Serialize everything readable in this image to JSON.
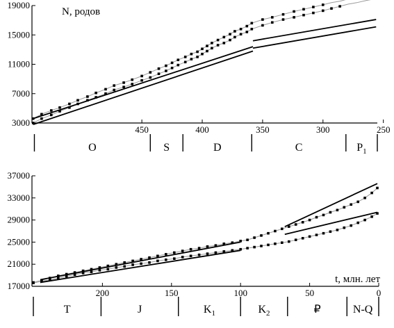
{
  "chart_data": [
    {
      "type": "line",
      "ylabel": "N, родов",
      "xlim": [
        541,
        255
      ],
      "ylim": [
        3000,
        19000
      ],
      "yticks": [
        3000,
        7000,
        11000,
        15000,
        19000
      ],
      "xticks": [
        450,
        400,
        350,
        300,
        250
      ],
      "grid": false,
      "periods": [
        {
          "label": "O",
          "sub": ""
        },
        {
          "label": "S",
          "sub": ""
        },
        {
          "label": "D",
          "sub": ""
        },
        {
          "label": "C",
          "sub": ""
        },
        {
          "label": "P",
          "sub": "1"
        }
      ],
      "period_bounds": [
        539,
        443,
        416,
        359,
        281
      ],
      "series": [
        {
          "x": [
            540,
            533,
            525,
            518,
            510,
            503,
            495,
            488,
            480,
            473,
            465,
            458,
            450,
            443,
            436,
            430,
            425,
            420,
            414,
            409,
            404,
            400,
            396,
            392,
            387,
            382,
            377,
            373,
            368,
            363,
            359,
            350,
            342,
            333,
            324,
            316,
            308,
            300,
            293,
            286,
            279,
            272,
            264,
            257
          ],
          "values": [
            3600,
            4200,
            4700,
            5100,
            5600,
            6100,
            6600,
            7100,
            7600,
            8100,
            8500,
            8900,
            9400,
            9900,
            10400,
            10800,
            11200,
            11600,
            12000,
            12400,
            12700,
            13100,
            13500,
            13900,
            14300,
            14700,
            15100,
            15500,
            15800,
            16200,
            16600,
            17100,
            17400,
            17800,
            18200,
            18500,
            18800,
            19100,
            19400,
            19600,
            19900,
            20100,
            20300,
            20600
          ]
        },
        {
          "x": [
            540,
            533,
            525,
            518,
            510,
            503,
            495,
            488,
            480,
            473,
            465,
            458,
            450,
            443,
            436,
            430,
            425,
            420,
            414,
            409,
            404,
            400,
            396,
            392,
            387,
            382,
            377,
            373,
            368,
            363,
            359,
            350,
            342,
            333,
            324,
            316,
            308,
            300,
            293,
            286,
            279,
            272,
            264,
            257
          ],
          "values": [
            3000,
            3600,
            4100,
            4600,
            5100,
            5600,
            6100,
            6500,
            7000,
            7500,
            7900,
            8300,
            8800,
            9200,
            9700,
            10100,
            10500,
            10900,
            11300,
            11700,
            12000,
            12400,
            12800,
            13200,
            13600,
            13900,
            14300,
            14700,
            15100,
            15400,
            15800,
            16300,
            16700,
            17100,
            17400,
            17700,
            18000,
            18300,
            18600,
            18900,
            19200,
            19400,
            19700,
            19900
          ]
        }
      ],
      "fits": [
        {
          "from": [
            540,
            3600
          ],
          "to": [
            358,
            13400
          ]
        },
        {
          "from": [
            358,
            14200
          ],
          "to": [
            256,
            17100
          ]
        },
        {
          "from": [
            540,
            2800
          ],
          "to": [
            358,
            12800
          ]
        },
        {
          "from": [
            358,
            13200
          ],
          "to": [
            256,
            16100
          ]
        }
      ]
    },
    {
      "type": "line",
      "xlabel": "t, млн. лет",
      "xlim": [
        251,
        0
      ],
      "ylim": [
        17000,
        37000
      ],
      "yticks": [
        17000,
        21000,
        25000,
        29000,
        33000,
        37000
      ],
      "xticks": [
        200,
        150,
        100,
        50,
        0
      ],
      "grid": false,
      "periods": [
        {
          "label": "T",
          "sub": ""
        },
        {
          "label": "J",
          "sub": ""
        },
        {
          "label": "K",
          "sub": "1"
        },
        {
          "label": "K",
          "sub": "2"
        },
        {
          "label": "₽",
          "sub": ""
        },
        {
          "label": "N-Q",
          "sub": ""
        }
      ],
      "period_bounds": [
        250,
        201,
        145,
        100,
        66,
        23
      ],
      "series": [
        {
          "x": [
            250,
            244,
            238,
            232,
            226,
            220,
            214,
            208,
            202,
            196,
            190,
            184,
            178,
            172,
            166,
            160,
            154,
            148,
            142,
            136,
            130,
            124,
            118,
            112,
            106,
            100,
            95,
            90,
            85,
            80,
            75,
            70,
            65,
            60,
            55,
            50,
            45,
            40,
            35,
            30,
            25,
            20,
            15,
            10,
            5,
            1
          ],
          "values": [
            17700,
            18100,
            18500,
            18900,
            19200,
            19500,
            19800,
            20100,
            20400,
            20700,
            21000,
            21300,
            21600,
            21900,
            22200,
            22500,
            22800,
            23100,
            23400,
            23700,
            23900,
            24200,
            24400,
            24700,
            24900,
            25200,
            25400,
            25800,
            26200,
            26600,
            27000,
            27400,
            27800,
            28200,
            28600,
            29000,
            29500,
            29900,
            30400,
            30800,
            31300,
            31800,
            32300,
            33000,
            33900,
            34800
          ]
        },
        {
          "x": [
            250,
            244,
            238,
            232,
            226,
            220,
            214,
            208,
            202,
            196,
            190,
            184,
            178,
            172,
            166,
            160,
            154,
            148,
            142,
            136,
            130,
            124,
            118,
            112,
            106,
            100,
            95,
            90,
            85,
            80,
            75,
            70,
            65,
            60,
            55,
            50,
            45,
            40,
            35,
            30,
            25,
            20,
            15,
            10,
            5,
            1
          ],
          "values": [
            17600,
            17900,
            18200,
            18500,
            18800,
            19100,
            19400,
            19600,
            19900,
            20100,
            20400,
            20600,
            20900,
            21100,
            21300,
            21600,
            21800,
            22000,
            22300,
            22500,
            22700,
            22900,
            23100,
            23300,
            23500,
            23700,
            23900,
            24100,
            24300,
            24500,
            24700,
            24900,
            25100,
            25400,
            25700,
            26000,
            26300,
            26600,
            26900,
            27200,
            27600,
            28000,
            28500,
            29000,
            29600,
            30200
          ]
        }
      ],
      "fits": [
        {
          "from": [
            245,
            18200
          ],
          "to": [
            100,
            25000
          ]
        },
        {
          "from": [
            68,
            27800
          ],
          "to": [
            1,
            35600
          ]
        },
        {
          "from": [
            245,
            17700
          ],
          "to": [
            100,
            23500
          ]
        },
        {
          "from": [
            68,
            26400
          ],
          "to": [
            1,
            30400
          ]
        }
      ]
    }
  ]
}
